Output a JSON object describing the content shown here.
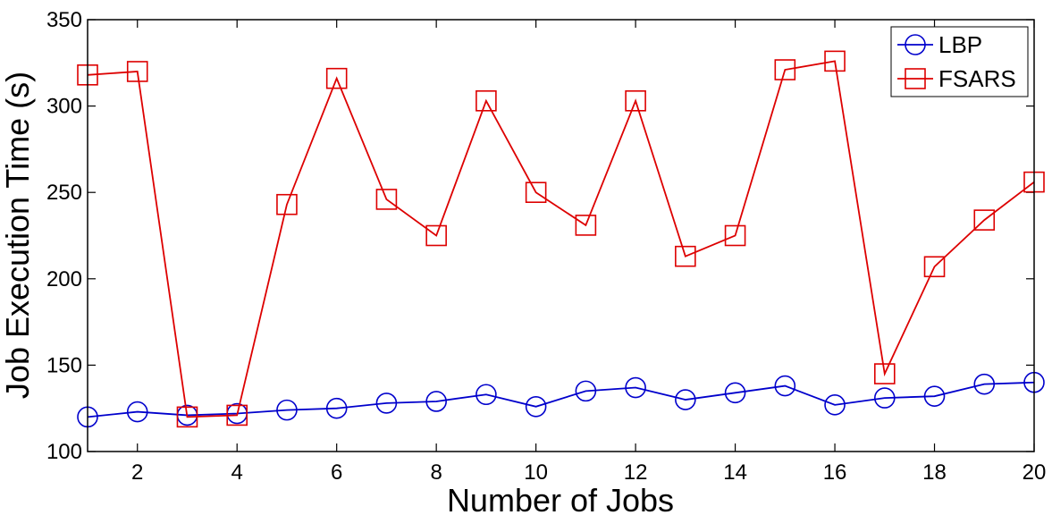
{
  "chart_data": {
    "type": "line",
    "xlabel": "Number of Jobs",
    "ylabel": "Job Execution Time (s)",
    "xlim": [
      1,
      20
    ],
    "ylim": [
      100,
      350
    ],
    "x": [
      1,
      2,
      3,
      4,
      5,
      6,
      7,
      8,
      9,
      10,
      11,
      12,
      13,
      14,
      15,
      16,
      17,
      18,
      19,
      20
    ],
    "xticks": [
      2,
      4,
      6,
      8,
      10,
      12,
      14,
      16,
      18,
      20
    ],
    "yticks": [
      100,
      150,
      200,
      250,
      300,
      350
    ],
    "grid": false,
    "legend_position": "top-right",
    "series": [
      {
        "name": "LBP",
        "color": "#0000cc",
        "marker": "circle",
        "values": [
          120,
          123,
          121,
          122,
          124,
          125,
          128,
          129,
          133,
          126,
          135,
          137,
          130,
          134,
          138,
          127,
          131,
          132,
          139,
          140
        ]
      },
      {
        "name": "FSARS",
        "color": "#dd0000",
        "marker": "square",
        "values": [
          318,
          320,
          120,
          121,
          243,
          316,
          246,
          225,
          303,
          250,
          231,
          303,
          213,
          225,
          321,
          326,
          145,
          207,
          234,
          256
        ]
      }
    ]
  }
}
